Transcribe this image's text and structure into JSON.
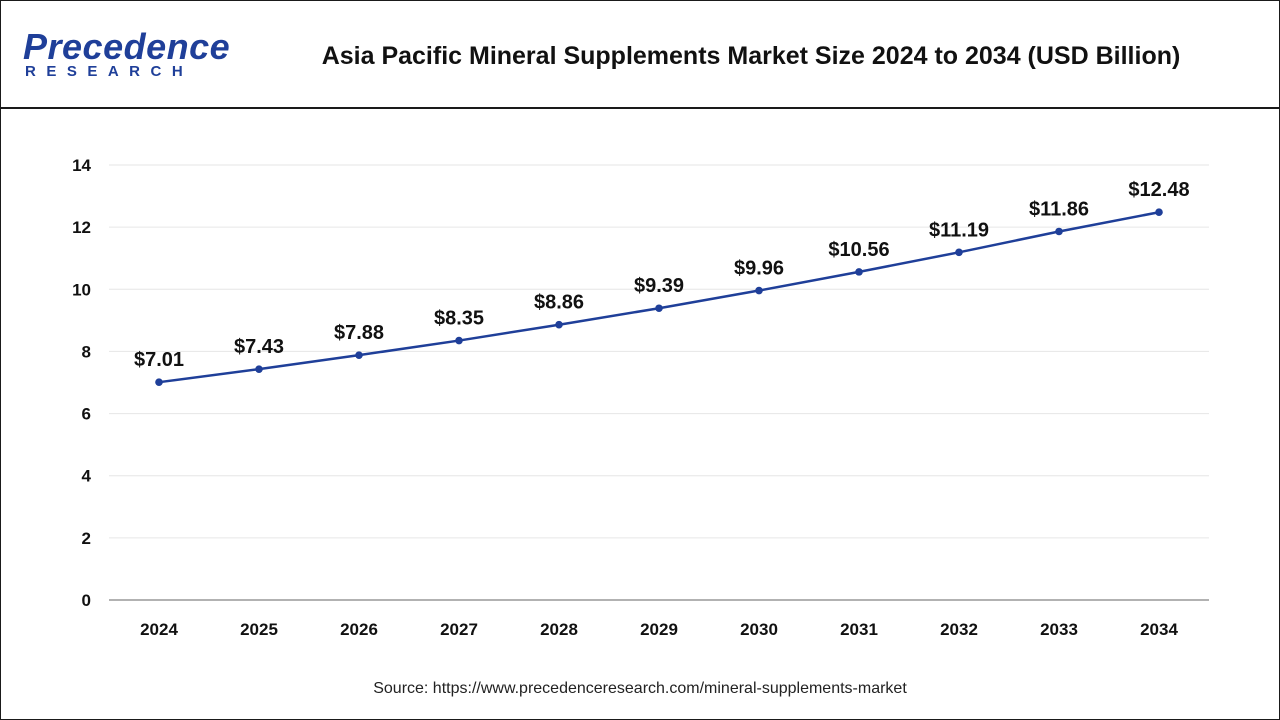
{
  "header": {
    "title": "Asia Pacific Mineral Supplements Market Size 2024 to 2034 (USD Billion)"
  },
  "logo": {
    "word": "Precedence",
    "sub": "RESEARCH"
  },
  "source": "Source: https://www.precedenceresearch.com/mineral-supplements-market",
  "colors": {
    "line": "#1f3f99",
    "grid": "#e6e6e6",
    "axis": "#999999"
  },
  "chart_data": {
    "type": "line",
    "title": "Asia Pacific Mineral Supplements Market Size 2024 to 2034 (USD Billion)",
    "xlabel": "",
    "ylabel": "",
    "x": [
      "2024",
      "2025",
      "2026",
      "2027",
      "2028",
      "2029",
      "2030",
      "2031",
      "2032",
      "2033",
      "2034"
    ],
    "series": [
      {
        "values": [
          7.01,
          7.43,
          7.88,
          8.35,
          8.86,
          9.39,
          9.96,
          10.56,
          11.19,
          11.86,
          12.48
        ],
        "labels": [
          "$7.01",
          "$7.43",
          "$7.88",
          "$8.35",
          "$8.86",
          "$9.39",
          "$9.96",
          "$10.56",
          "$11.19",
          "$11.86",
          "$12.48"
        ]
      }
    ],
    "ylim": [
      0,
      14
    ],
    "yticks": [
      0,
      2,
      4,
      6,
      8,
      10,
      12,
      14
    ],
    "grid": true,
    "legend": "none"
  }
}
